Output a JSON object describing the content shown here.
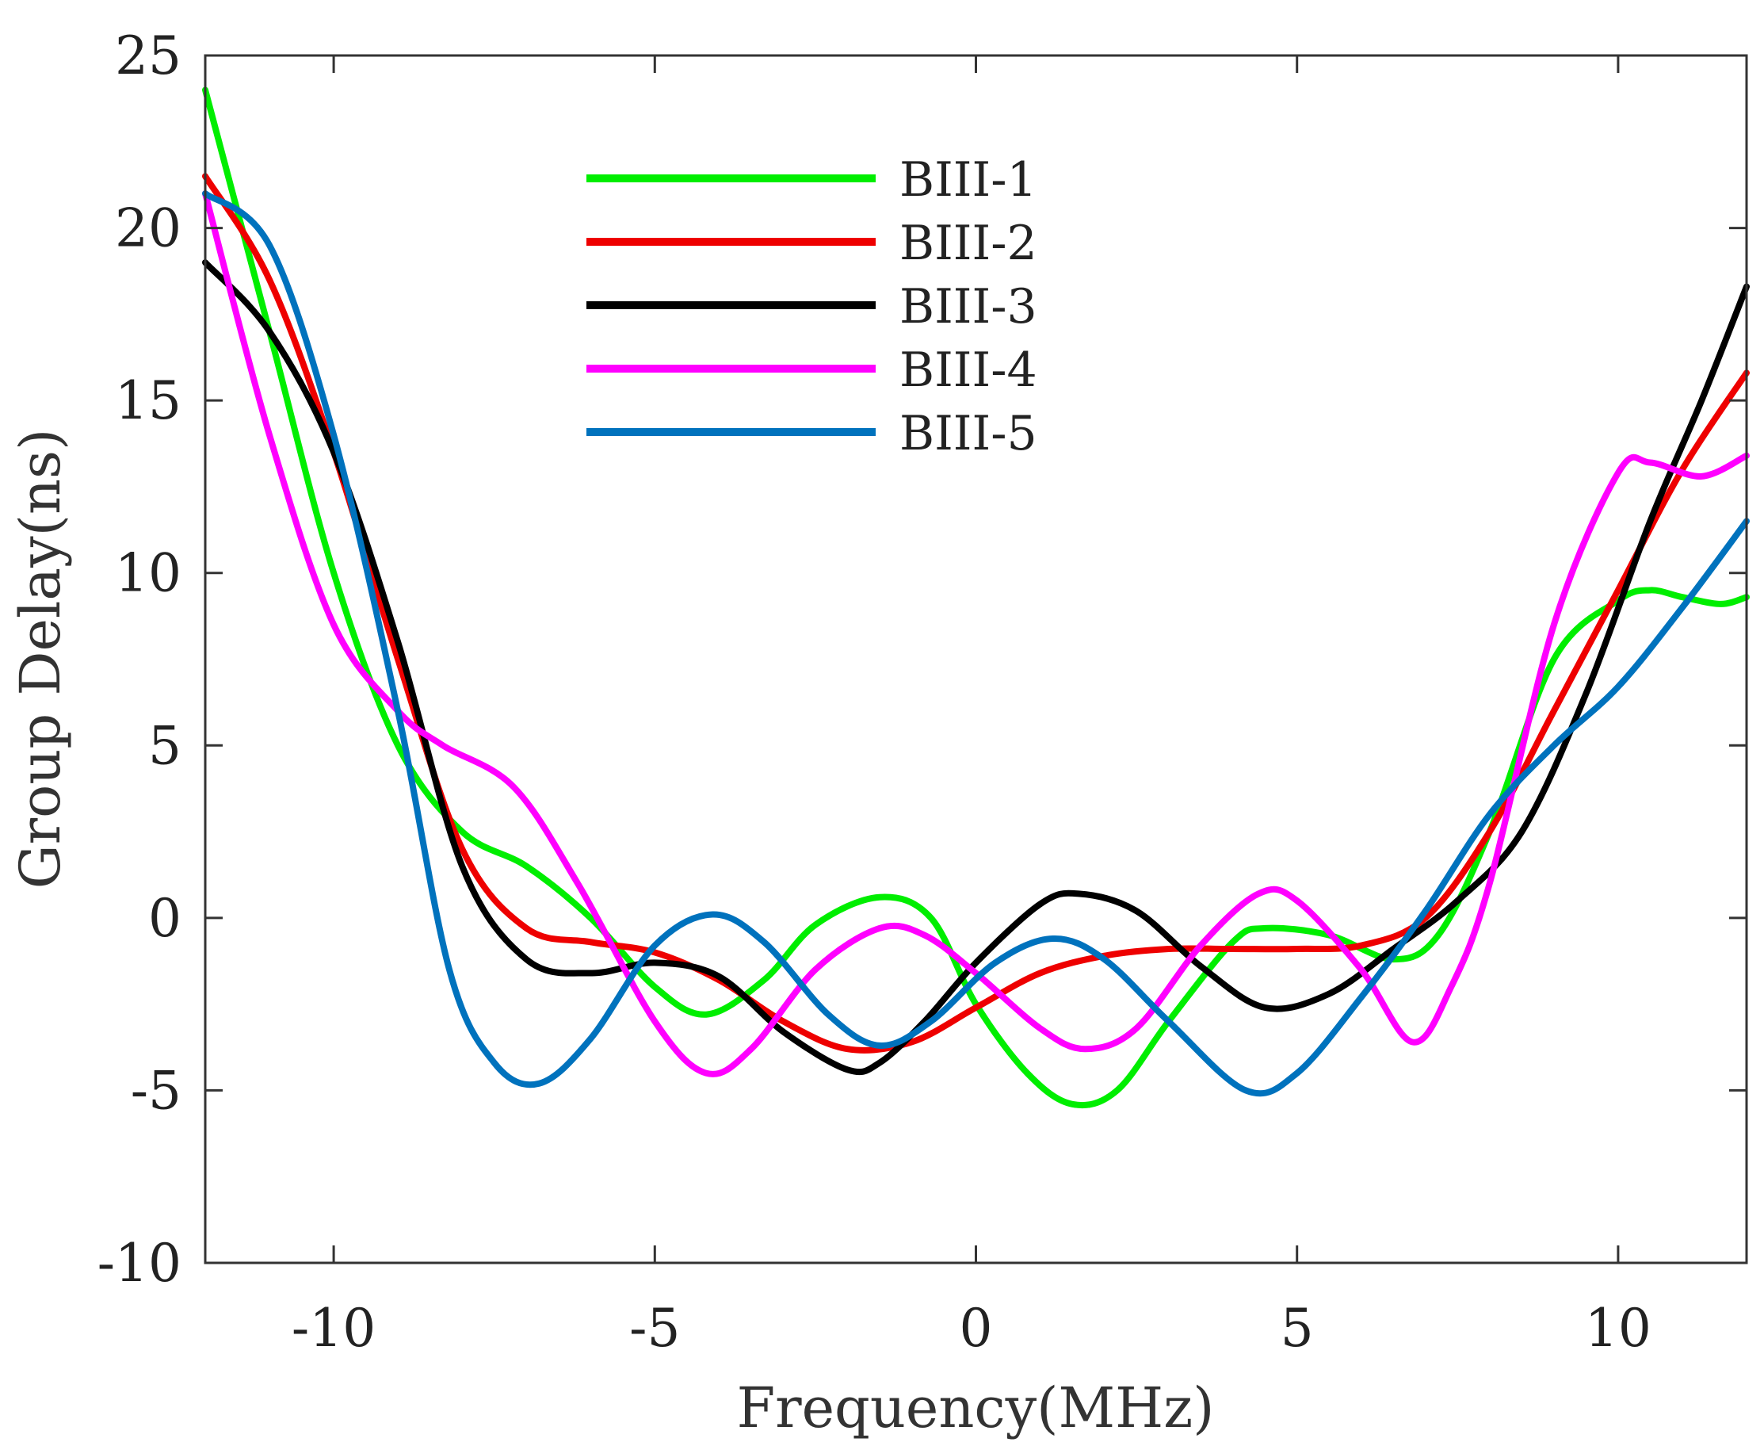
{
  "chart_data": {
    "type": "line",
    "title": "",
    "xlabel": "Frequency(MHz)",
    "ylabel": "Group Delay(ns)",
    "xlim": [
      -12,
      12
    ],
    "ylim": [
      -10,
      25
    ],
    "xticks": [
      -10,
      -5,
      0,
      5,
      10
    ],
    "xtick_labels": [
      "-10",
      "-5",
      "0",
      "5",
      "10"
    ],
    "yticks": [
      -10,
      -5,
      0,
      5,
      10,
      15,
      20,
      25
    ],
    "ytick_labels": [
      "-10",
      "-5",
      "0",
      "5",
      "10",
      "15",
      "20",
      "25"
    ],
    "grid": false,
    "legend_position": "top-center",
    "series": [
      {
        "name": "BIII-1",
        "color": "#00ee00",
        "points": [
          [
            -12,
            24
          ],
          [
            -11,
            17
          ],
          [
            -10,
            10
          ],
          [
            -9,
            5
          ],
          [
            -8,
            2.5
          ],
          [
            -7,
            1.5
          ],
          [
            -6,
            0
          ],
          [
            -5,
            -2
          ],
          [
            -4.2,
            -2.8
          ],
          [
            -3.3,
            -1.8
          ],
          [
            -2.5,
            -0.2
          ],
          [
            -1.5,
            0.6
          ],
          [
            -0.7,
            0
          ],
          [
            0,
            -2.5
          ],
          [
            0.8,
            -4.5
          ],
          [
            1.5,
            -5.4
          ],
          [
            2.2,
            -5
          ],
          [
            3,
            -3
          ],
          [
            4,
            -0.7
          ],
          [
            4.5,
            -0.3
          ],
          [
            5.5,
            -0.5
          ],
          [
            6.5,
            -1.2
          ],
          [
            7.2,
            -0.5
          ],
          [
            8,
            2.5
          ],
          [
            9,
            7.5
          ],
          [
            10,
            9.2
          ],
          [
            10.5,
            9.5
          ],
          [
            11,
            9.3
          ],
          [
            11.6,
            9.1
          ],
          [
            12,
            9.3
          ]
        ]
      },
      {
        "name": "BIII-2",
        "color": "#ee0000",
        "points": [
          [
            -12,
            21.5
          ],
          [
            -11,
            18.5
          ],
          [
            -10,
            13.5
          ],
          [
            -9,
            7.5
          ],
          [
            -8,
            2
          ],
          [
            -7,
            -0.3
          ],
          [
            -6,
            -0.7
          ],
          [
            -5,
            -1
          ],
          [
            -4,
            -1.8
          ],
          [
            -3,
            -3
          ],
          [
            -2,
            -3.8
          ],
          [
            -1,
            -3.6
          ],
          [
            0,
            -2.6
          ],
          [
            1,
            -1.6
          ],
          [
            2,
            -1.1
          ],
          [
            3,
            -0.9
          ],
          [
            4,
            -0.9
          ],
          [
            5,
            -0.9
          ],
          [
            6,
            -0.8
          ],
          [
            7,
            0
          ],
          [
            8,
            2.5
          ],
          [
            9,
            6
          ],
          [
            10,
            9.5
          ],
          [
            11,
            13
          ],
          [
            12,
            15.8
          ]
        ]
      },
      {
        "name": "BIII-3",
        "color": "#000000",
        "points": [
          [
            -12,
            19
          ],
          [
            -11,
            17
          ],
          [
            -10,
            13.5
          ],
          [
            -9,
            8
          ],
          [
            -8,
            1.5
          ],
          [
            -7,
            -1.2
          ],
          [
            -6,
            -1.6
          ],
          [
            -5,
            -1.3
          ],
          [
            -4,
            -1.7
          ],
          [
            -3,
            -3.3
          ],
          [
            -2,
            -4.4
          ],
          [
            -1.5,
            -4.2
          ],
          [
            -0.8,
            -3
          ],
          [
            0,
            -1.3
          ],
          [
            1,
            0.4
          ],
          [
            1.6,
            0.7
          ],
          [
            2.5,
            0.2
          ],
          [
            3.5,
            -1.4
          ],
          [
            4.5,
            -2.6
          ],
          [
            5.5,
            -2.2
          ],
          [
            6.5,
            -0.9
          ],
          [
            7.5,
            0.5
          ],
          [
            8.5,
            2.5
          ],
          [
            9.5,
            6.5
          ],
          [
            10.5,
            11.5
          ],
          [
            11.3,
            15
          ],
          [
            12,
            18.3
          ]
        ]
      },
      {
        "name": "BIII-4",
        "color": "#ff00ff",
        "points": [
          [
            -12,
            21
          ],
          [
            -11,
            14
          ],
          [
            -10,
            8.5
          ],
          [
            -9,
            6
          ],
          [
            -8.3,
            5
          ],
          [
            -7.2,
            3.8
          ],
          [
            -6.2,
            1
          ],
          [
            -5,
            -3
          ],
          [
            -4.2,
            -4.5
          ],
          [
            -3.5,
            -3.8
          ],
          [
            -2.5,
            -1.5
          ],
          [
            -1.5,
            -0.3
          ],
          [
            -0.8,
            -0.5
          ],
          [
            0,
            -1.6
          ],
          [
            1,
            -3.2
          ],
          [
            1.7,
            -3.8
          ],
          [
            2.5,
            -3.2
          ],
          [
            3.5,
            -0.8
          ],
          [
            4.4,
            0.7
          ],
          [
            5,
            0.5
          ],
          [
            6,
            -1.5
          ],
          [
            6.8,
            -3.6
          ],
          [
            7.4,
            -2
          ],
          [
            8,
            1
          ],
          [
            9,
            8.5
          ],
          [
            10,
            12.9
          ],
          [
            10.5,
            13.2
          ],
          [
            11.3,
            12.8
          ],
          [
            12,
            13.4
          ]
        ]
      },
      {
        "name": "BIII-5",
        "color": "#0072bd",
        "points": [
          [
            -12,
            21
          ],
          [
            -11,
            19.5
          ],
          [
            -10,
            14
          ],
          [
            -9,
            6
          ],
          [
            -8.2,
            -1.5
          ],
          [
            -7.5,
            -4.2
          ],
          [
            -6.8,
            -4.8
          ],
          [
            -6,
            -3.5
          ],
          [
            -5,
            -0.8
          ],
          [
            -4.1,
            0.1
          ],
          [
            -3.3,
            -0.7
          ],
          [
            -2.3,
            -2.8
          ],
          [
            -1.5,
            -3.7
          ],
          [
            -0.7,
            -3
          ],
          [
            0.3,
            -1.3
          ],
          [
            1.2,
            -0.6
          ],
          [
            2,
            -1.2
          ],
          [
            3,
            -3
          ],
          [
            4.2,
            -5
          ],
          [
            5,
            -4.5
          ],
          [
            6,
            -2.3
          ],
          [
            7,
            0.2
          ],
          [
            8,
            3
          ],
          [
            9,
            5
          ],
          [
            10,
            6.7
          ],
          [
            11,
            9
          ],
          [
            12,
            11.5
          ]
        ]
      }
    ]
  }
}
